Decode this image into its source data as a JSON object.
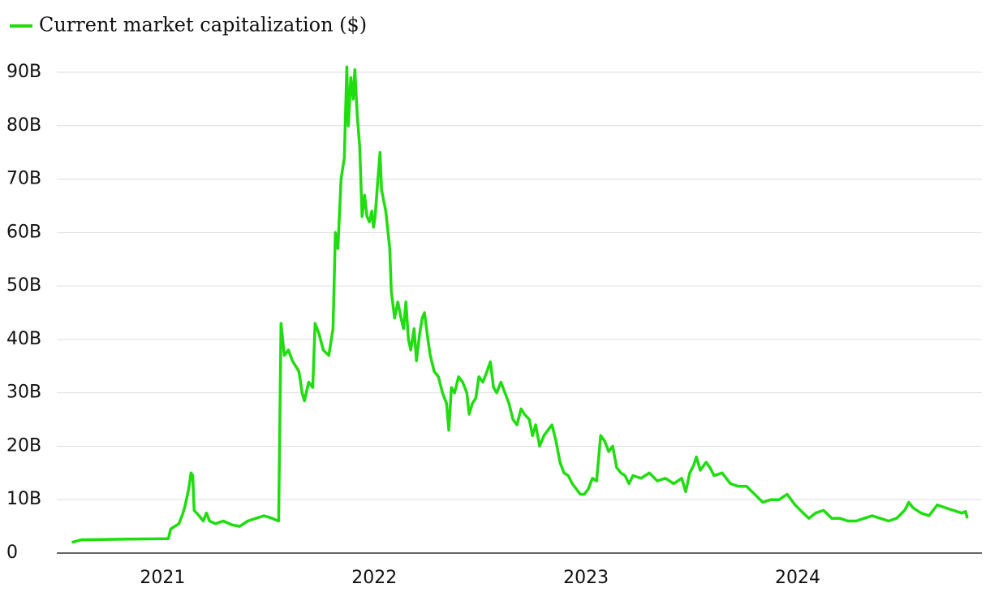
{
  "chart_data": {
    "type": "line",
    "x": [
      2020.571,
      2020.617,
      2020.808,
      2021.027,
      2021.038,
      2021.077,
      2021.096,
      2021.107,
      2021.123,
      2021.134,
      2021.142,
      2021.149,
      2021.172,
      2021.192,
      2021.207,
      2021.222,
      2021.249,
      2021.287,
      2021.326,
      2021.364,
      2021.402,
      2021.441,
      2021.479,
      2021.517,
      2021.548,
      2021.559,
      2021.575,
      2021.594,
      2021.613,
      2021.644,
      2021.659,
      2021.67,
      2021.69,
      2021.709,
      2021.72,
      2021.739,
      2021.759,
      2021.785,
      2021.805,
      2021.816,
      2021.828,
      2021.843,
      2021.858,
      2021.87,
      2021.877,
      2021.889,
      2021.9,
      2021.908,
      2021.919,
      2021.931,
      2021.942,
      2021.954,
      2021.965,
      2021.977,
      2021.988,
      2021.996,
      2022.004,
      2022.015,
      2022.027,
      2022.034,
      2022.054,
      2022.073,
      2022.08,
      2022.096,
      2022.111,
      2022.126,
      2022.138,
      2022.149,
      2022.161,
      2022.172,
      2022.188,
      2022.199,
      2022.214,
      2022.226,
      2022.237,
      2022.253,
      2022.264,
      2022.283,
      2022.303,
      2022.322,
      2022.341,
      2022.352,
      2022.364,
      2022.379,
      2022.398,
      2022.417,
      2022.437,
      2022.448,
      2022.463,
      2022.479,
      2022.494,
      2022.513,
      2022.532,
      2022.548,
      2022.563,
      2022.578,
      2022.598,
      2022.617,
      2022.636,
      2022.655,
      2022.674,
      2022.693,
      2022.709,
      2022.732,
      2022.747,
      2022.762,
      2022.781,
      2022.801,
      2022.82,
      2022.839,
      2022.858,
      2022.877,
      2022.896,
      2022.916,
      2022.935,
      2022.954,
      2022.973,
      2022.992,
      2023.011,
      2023.03,
      2023.05,
      2023.069,
      2023.088,
      2023.107,
      2023.126,
      2023.145,
      2023.165,
      2023.184,
      2023.203,
      2023.222,
      2023.26,
      2023.299,
      2023.337,
      2023.375,
      2023.414,
      2023.452,
      2023.471,
      2023.49,
      2023.509,
      2023.521,
      2023.54,
      2023.567,
      2023.586,
      2023.605,
      2023.643,
      2023.682,
      2023.72,
      2023.758,
      2023.797,
      2023.835,
      2023.873,
      2023.912,
      2023.95,
      2023.988,
      2024.026,
      2024.053,
      2024.084,
      2024.122,
      2024.161,
      2024.199,
      2024.237,
      2024.276,
      2024.314,
      2024.352,
      2024.39,
      2024.429,
      2024.467,
      2024.505,
      2024.525,
      2024.544,
      2024.582,
      2024.62,
      2024.659,
      2024.697,
      2024.735,
      2024.774,
      2024.793,
      2024.801
    ],
    "series": [
      {
        "name": "Current market capitalization ($)",
        "color": "#1fdd0f",
        "values": [
          2.0,
          2.5,
          2.6,
          2.7,
          4.5,
          5.5,
          7.5,
          9,
          12,
          15,
          14.5,
          8,
          7,
          6,
          7.5,
          6,
          5.5,
          6,
          5.3,
          5,
          6,
          6.5,
          7,
          6.5,
          6,
          43,
          37,
          38,
          36,
          34,
          30,
          28.5,
          32,
          31,
          43,
          41,
          38,
          37,
          42,
          60,
          57,
          70,
          74,
          91,
          80,
          89,
          85,
          90.5,
          82,
          76,
          63,
          67,
          63,
          62,
          64,
          61,
          63,
          69,
          75,
          68,
          64,
          57,
          49,
          44,
          47,
          44,
          42,
          47,
          40,
          38,
          42,
          36,
          41,
          44,
          45,
          40,
          37,
          34,
          33,
          30,
          28,
          23,
          31,
          30,
          33,
          32,
          30,
          26,
          28,
          29,
          33,
          32,
          34,
          35.8,
          31,
          30,
          32,
          30,
          28,
          25,
          24,
          27,
          26,
          25,
          22,
          24,
          20,
          22,
          23,
          24,
          21,
          17,
          15,
          14.5,
          13,
          12,
          11,
          11,
          12,
          14,
          13.5,
          22,
          21,
          19,
          20,
          16,
          15,
          14.5,
          13,
          14.5,
          14,
          15,
          13.5,
          14,
          13,
          14,
          11.5,
          15,
          16.5,
          18,
          15.5,
          17,
          16,
          14.5,
          15,
          13,
          12.5,
          12.5,
          11,
          9.5,
          10,
          10,
          11,
          9,
          7.5,
          6.5,
          7.5,
          8,
          6.5,
          6.5,
          6,
          6,
          6.5,
          7,
          6.5,
          6,
          6.5,
          8,
          9.5,
          8.5,
          7.5,
          7,
          9,
          8.5,
          8,
          7.5,
          7.8,
          6.5
        ]
      }
    ],
    "xlim": [
      2020.5,
      2024.87
    ],
    "xticks": [
      2021,
      2022,
      2023,
      2024
    ],
    "ylim": [
      0,
      90
    ],
    "yticks": [
      0,
      {
        "value": 10,
        "label": "10B"
      },
      {
        "value": 20,
        "label": "20B"
      },
      {
        "value": 30,
        "label": "30B"
      },
      {
        "value": 40,
        "label": "40B"
      },
      {
        "value": 50,
        "label": "50B"
      },
      {
        "value": 60,
        "label": "60B"
      },
      {
        "value": 70,
        "label": "70B"
      },
      {
        "value": 80,
        "label": "80B"
      },
      {
        "value": 90,
        "label": "90B"
      }
    ],
    "grid": true
  }
}
